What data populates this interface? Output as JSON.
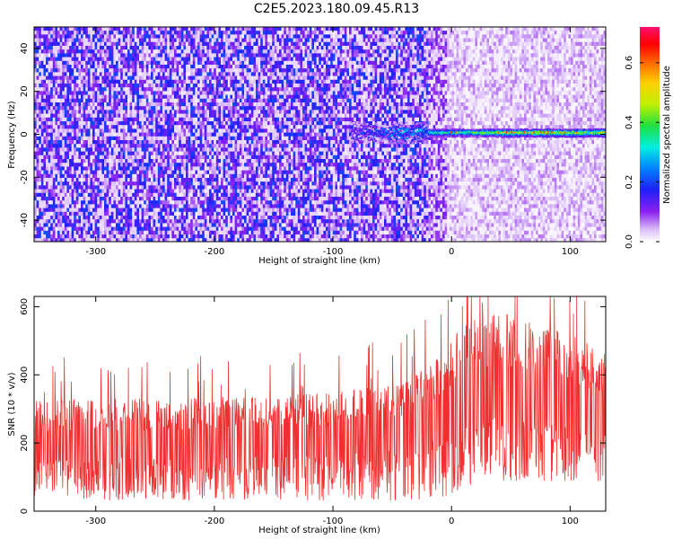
{
  "title": "C2E5.2023.180.09.45.R13",
  "chart_data": [
    {
      "type": "heatmap",
      "xlabel": "Height of straight line (km)",
      "ylabel": "Frequency (Hz)",
      "xlim": [
        -352,
        130
      ],
      "ylim": [
        -50,
        50
      ],
      "xticks": [
        -300,
        -200,
        -100,
        0,
        100
      ],
      "yticks": [
        -40,
        -20,
        0,
        20,
        40
      ],
      "colorbar": {
        "label": "Normalized spectral amplitude",
        "range": [
          0,
          0.72
        ],
        "ticks": [
          0.0,
          0.2,
          0.4,
          0.6
        ],
        "colormap": "rainbow: white-purple-blue-cyan-green-yellow-orange-red-magenta"
      },
      "features": {
        "background_left_amplitude": 0.12,
        "background_right_amplitude": 0.04,
        "background_transition_x": -20,
        "signal_line": {
          "frequency_hz": 1,
          "x_start": -85,
          "x_end": 130,
          "amplitude_start": 0.18,
          "amplitude_end": 0.5,
          "peak_amplitude": 0.62,
          "peak_x": [
            -5,
            95
          ]
        }
      }
    },
    {
      "type": "line",
      "color": "#f03030",
      "xlabel": "Height of straight line (km)",
      "ylabel": "SNR (10 * v/v)",
      "xlim": [
        -352,
        130
      ],
      "ylim": [
        0,
        630
      ],
      "xticks": [
        -300,
        -200,
        -100,
        0,
        100
      ],
      "yticks": [
        0,
        200,
        400,
        600
      ],
      "envelope": {
        "x": [
          -352,
          -200,
          -100,
          -50,
          -20,
          0,
          10,
          40,
          80,
          130
        ],
        "upper": [
          310,
          320,
          330,
          360,
          400,
          480,
          540,
          560,
          520,
          450
        ],
        "lower": [
          30,
          30,
          30,
          30,
          30,
          45,
          70,
          85,
          85,
          85
        ],
        "spike_max": 630
      }
    }
  ]
}
